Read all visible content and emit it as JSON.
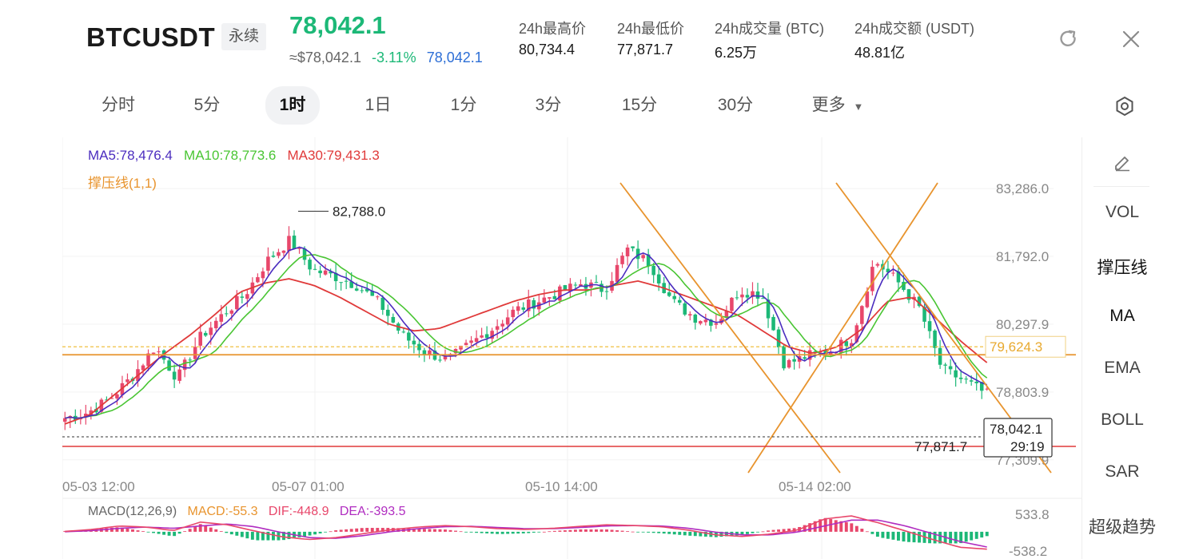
{
  "header": {
    "symbol": "BTCUSDT",
    "badge": "永续",
    "last_price": "78,042.1",
    "usd_price": "≈$78,042.1",
    "change_pct": "-3.11%",
    "mark_price": "78,042.1",
    "stats": [
      {
        "label": "24h最高价",
        "value": "80,734.4"
      },
      {
        "label": "24h最低价",
        "value": "77,871.7"
      },
      {
        "label": "24h成交量 (BTC)",
        "value": "6.25万"
      },
      {
        "label": "24h成交额 (USDT)",
        "value": "48.81亿"
      }
    ]
  },
  "tabs": [
    "分时",
    "5分",
    "1时",
    "1日",
    "1分",
    "3分",
    "15分",
    "30分",
    "更多"
  ],
  "active_tab": "1时",
  "right_panel": [
    "VOL",
    "撑压线",
    "MA",
    "EMA",
    "BOLL",
    "SAR",
    "超级趋势"
  ],
  "colors": {
    "up": "#e8476b",
    "down": "#1cb877",
    "ma5": "#4b2dbf",
    "ma10": "#49c533",
    "ma30": "#e03a3a",
    "support": "#e8942e",
    "macd_dif": "#e8476b",
    "macd_dea": "#b02cc0"
  },
  "chart_data": {
    "type": "candlestick",
    "legend": {
      "ma5": "MA5:78,476.4",
      "ma10": "MA10:78,773.6",
      "ma30": "MA30:79,431.3",
      "sr": "撑压线(1,1)"
    },
    "y_ticks": [
      "83,286.0",
      "81,792.0",
      "80,297.9",
      "78,803.9",
      "77,309.9"
    ],
    "y_tick_values": [
      83286.0,
      81792.0,
      80297.9,
      78803.9,
      77309.9
    ],
    "x_ticks": [
      "05-03 12:00",
      "05-07 01:00",
      "05-10 14:00",
      "05-14 02:00"
    ],
    "ylim": [
      77200,
      83500
    ],
    "high_annotation": {
      "label": "82,788.0",
      "value": 82788.0
    },
    "low_annotation": {
      "label": "77,871.7",
      "value": 77871.7
    },
    "support_line": {
      "label": "79,624.3",
      "value": 79624.3
    },
    "current": {
      "price": "78,042.1",
      "countdown": "29:19",
      "value": 78042.1
    },
    "close_keypoints": [
      78230,
      78350,
      78650,
      79150,
      79800,
      79100,
      80000,
      80500,
      80950,
      81700,
      82150,
      81500,
      81350,
      81150,
      80750,
      80050,
      79700,
      79500,
      79850,
      80200,
      80600,
      80800,
      81000,
      81200,
      81050,
      81950,
      81650,
      80800,
      80450,
      80350,
      81050,
      80950,
      79400,
      79600,
      79700,
      80000,
      81700,
      81250,
      80650,
      79300,
      79050,
      78750
    ],
    "ma30_keypoints": [
      78100,
      78300,
      78750,
      79200,
      79650,
      80050,
      80500,
      81000,
      81200,
      81300,
      81150,
      80900,
      80600,
      80300,
      80150,
      80200,
      80400,
      80600,
      80800,
      80950,
      81050,
      81050,
      81150,
      81250,
      81100,
      80900,
      80700,
      80500,
      80150,
      79800,
      79650,
      79800,
      80200,
      80800,
      80900,
      80400,
      79900,
      79450
    ],
    "macd": {
      "label": "MACD(12,26,9)",
      "macd": "MACD:-55.3",
      "dif": "DIF:-448.9",
      "dea": "DEA:-393.5",
      "ylim": [
        -538.2,
        533.8
      ],
      "y_ticks": [
        "533.8",
        "-538.2"
      ],
      "dif_keypoints": [
        10,
        60,
        150,
        120,
        30,
        250,
        180,
        20,
        -130,
        -200,
        -150,
        -50,
        50,
        120,
        160,
        130,
        80,
        60,
        90,
        140,
        180,
        160,
        130,
        40,
        -80,
        -120,
        -60,
        40,
        330,
        410,
        230,
        20,
        -200,
        -400,
        -449
      ],
      "dea_keypoints": [
        0,
        30,
        90,
        120,
        90,
        150,
        200,
        130,
        -20,
        -150,
        -170,
        -100,
        0,
        80,
        130,
        140,
        110,
        80,
        80,
        110,
        150,
        160,
        150,
        90,
        -10,
        -80,
        -80,
        -10,
        150,
        300,
        300,
        150,
        -50,
        -250,
        -393
      ]
    }
  }
}
